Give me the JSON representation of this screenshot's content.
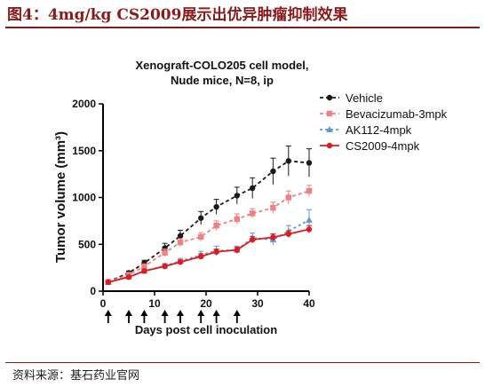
{
  "figure_title": "图4：4mg/kg CS2009展示出优异肿瘤抑制效果",
  "source": "资料来源：基石药业官网",
  "colors": {
    "heading": "#8B1A1A",
    "vehicle": "#1a1a1a",
    "bevacizumab": "#f08080",
    "ak112": "#5b9bd5",
    "cs2009": "#e31a1c"
  },
  "chart_data": {
    "type": "line",
    "title": "Xenograft-COLO205 cell model,",
    "subtitle": "Nude mice, N=8, ip",
    "xlabel": "Days post cell inoculation",
    "ylabel": "Tumor volume (mm³)",
    "xlim": [
      0,
      40
    ],
    "ylim": [
      0,
      2000
    ],
    "x_ticks": [
      "0",
      "10",
      "20",
      "30",
      "40"
    ],
    "y_ticks": [
      "0",
      "500",
      "1000",
      "1500",
      "2000"
    ],
    "grid": false,
    "legend_position": "top-right",
    "dosing_days": [
      1,
      5,
      8,
      12,
      15,
      19,
      22,
      26
    ],
    "x": [
      1,
      5,
      8,
      12,
      15,
      19,
      22,
      26,
      29,
      33,
      36,
      40
    ],
    "series": [
      {
        "name": "Vehicle",
        "color": "#1a1a1a",
        "marker": "circle",
        "dash": "4,3",
        "values": [
          100,
          195,
          300,
          460,
          590,
          780,
          900,
          1020,
          1100,
          1280,
          1390,
          1370
        ],
        "errors": [
          10,
          20,
          30,
          50,
          60,
          70,
          80,
          90,
          110,
          140,
          160,
          150
        ]
      },
      {
        "name": "Bevacizumab-3mpk",
        "color": "#f08080",
        "marker": "square",
        "dash": "4,3",
        "values": [
          100,
          175,
          265,
          410,
          520,
          580,
          700,
          770,
          830,
          890,
          1000,
          1070
        ],
        "errors": [
          10,
          15,
          25,
          40,
          40,
          45,
          50,
          55,
          50,
          60,
          70,
          60
        ]
      },
      {
        "name": "AK112-4mpk",
        "color": "#5b9bd5",
        "marker": "triangle",
        "dash": "3,3",
        "values": [
          95,
          155,
          215,
          270,
          320,
          385,
          430,
          440,
          570,
          550,
          640,
          760
        ],
        "errors": [
          10,
          15,
          20,
          25,
          30,
          40,
          50,
          40,
          50,
          60,
          60,
          110
        ]
      },
      {
        "name": "CS2009-4mpk",
        "color": "#e31a1c",
        "marker": "circle",
        "dash": "",
        "values": [
          95,
          150,
          215,
          265,
          310,
          370,
          420,
          440,
          550,
          575,
          610,
          660
        ],
        "errors": [
          10,
          15,
          20,
          20,
          25,
          30,
          30,
          30,
          35,
          35,
          35,
          40
        ]
      }
    ]
  }
}
